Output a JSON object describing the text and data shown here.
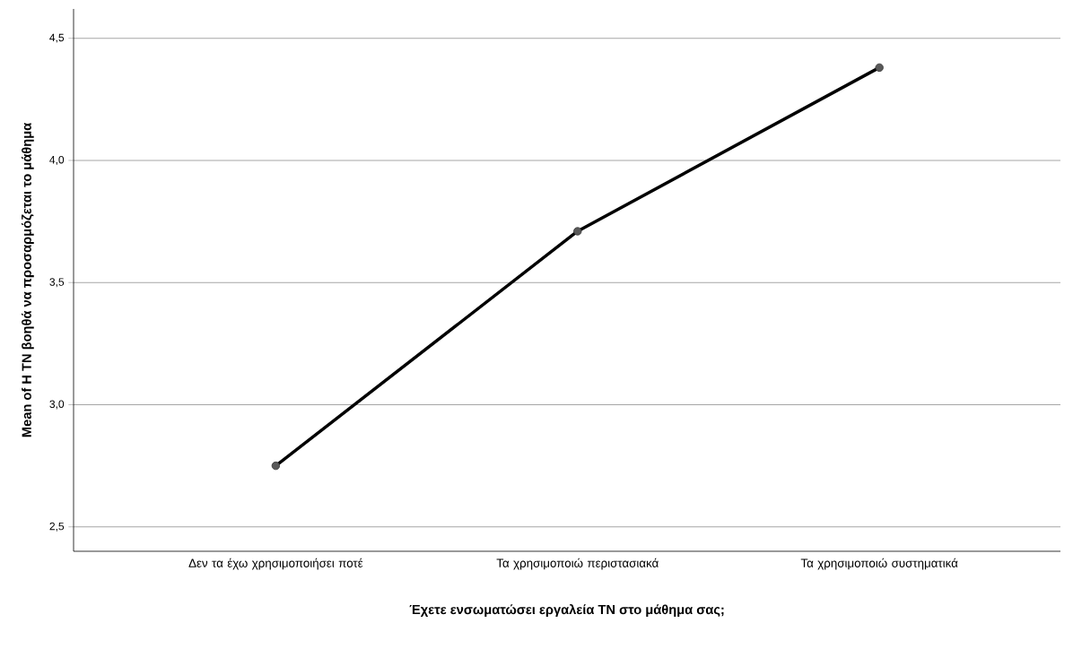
{
  "chart_data": {
    "type": "line",
    "xlabel": "Έχετε ενσωματώσει εργαλεία ΤΝ στο μάθημα σας;",
    "ylabel": "Mean of Η ΤΝ βοηθά  να προσαρμόζεται το μάθημα",
    "categories": [
      "Δεν τα έχω χρησιμοποιήσει ποτέ",
      "Τα χρησιμοποιώ περιστασιακά",
      "Τα χρησιμοποιώ συστηματικά"
    ],
    "values": [
      2.75,
      3.71,
      4.38
    ],
    "color": "#000000",
    "marker": "circle",
    "line_style": "solid",
    "grid": "y",
    "ylim": [
      2.4,
      4.62
    ],
    "yticks": [
      {
        "value": 2.5,
        "label": "2,5"
      },
      {
        "value": 3.0,
        "label": "3,0"
      },
      {
        "value": 3.5,
        "label": "3,5"
      },
      {
        "value": 4.0,
        "label": "4,0"
      },
      {
        "value": 4.5,
        "label": "4,5"
      }
    ]
  }
}
